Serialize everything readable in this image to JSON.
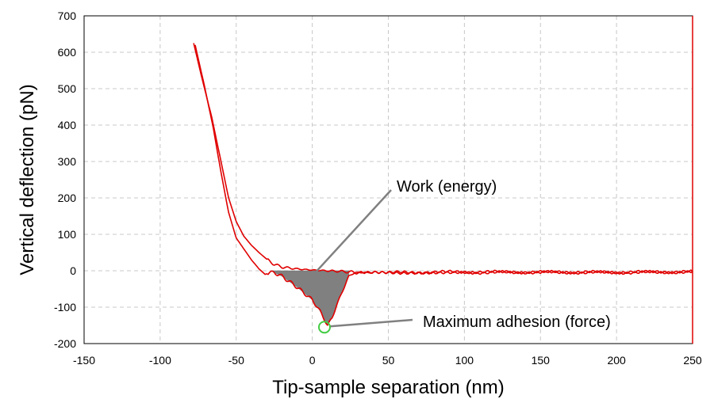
{
  "chart_data": {
    "type": "line",
    "title": "",
    "xlabel": "Tip-sample separation (nm)",
    "ylabel": "Vertical deflection (pN)",
    "xlim": [
      -150,
      250
    ],
    "ylim": [
      -200,
      700
    ],
    "xticks": [
      "-150",
      "-100",
      "-50",
      "0",
      "50",
      "100",
      "150",
      "200",
      "250"
    ],
    "yticks": [
      "700",
      "600",
      "500",
      "400",
      "300",
      "200",
      "100",
      "0",
      "-100",
      "-200"
    ],
    "grid": true,
    "series": [
      {
        "color": "#e00000",
        "x": [
          -78,
          -72,
          -66,
          -60,
          -55,
          -50,
          -45,
          -40,
          -35,
          -30,
          -28,
          -25,
          -20,
          -10,
          0,
          10,
          20,
          30,
          50,
          100,
          150,
          200,
          250
        ],
        "y": [
          625,
          520,
          420,
          300,
          200,
          135,
          95,
          70,
          50,
          32,
          25,
          18,
          10,
          5,
          2,
          0,
          -2,
          -5,
          -5,
          -3,
          -4,
          -4,
          -3
        ]
      },
      {
        "color": "#e00000",
        "x": [
          -77,
          -71,
          -65,
          -60,
          -55,
          -50,
          -45,
          -40,
          -35,
          -31,
          -28,
          -25,
          -20,
          -10,
          0,
          5,
          10,
          13,
          16,
          20,
          24,
          28,
          40,
          60,
          100,
          150,
          200,
          250
        ],
        "y": [
          620,
          510,
          390,
          270,
          160,
          90,
          60,
          30,
          5,
          -10,
          -5,
          -5,
          -15,
          -45,
          -80,
          -110,
          -150,
          -130,
          -95,
          -55,
          -15,
          -5,
          -5,
          -8,
          -5,
          -4,
          -5,
          -3
        ]
      }
    ],
    "annotations": [
      {
        "text": "Work (energy)"
      },
      {
        "text": "Maximum adhesion (force)"
      }
    ],
    "highlight": {
      "shaded_region": {
        "from_x": -27,
        "to_x": 24,
        "color": "#808080"
      },
      "max_adhesion_point": {
        "x": 8,
        "y": -155,
        "color": "#44cc44"
      }
    }
  }
}
